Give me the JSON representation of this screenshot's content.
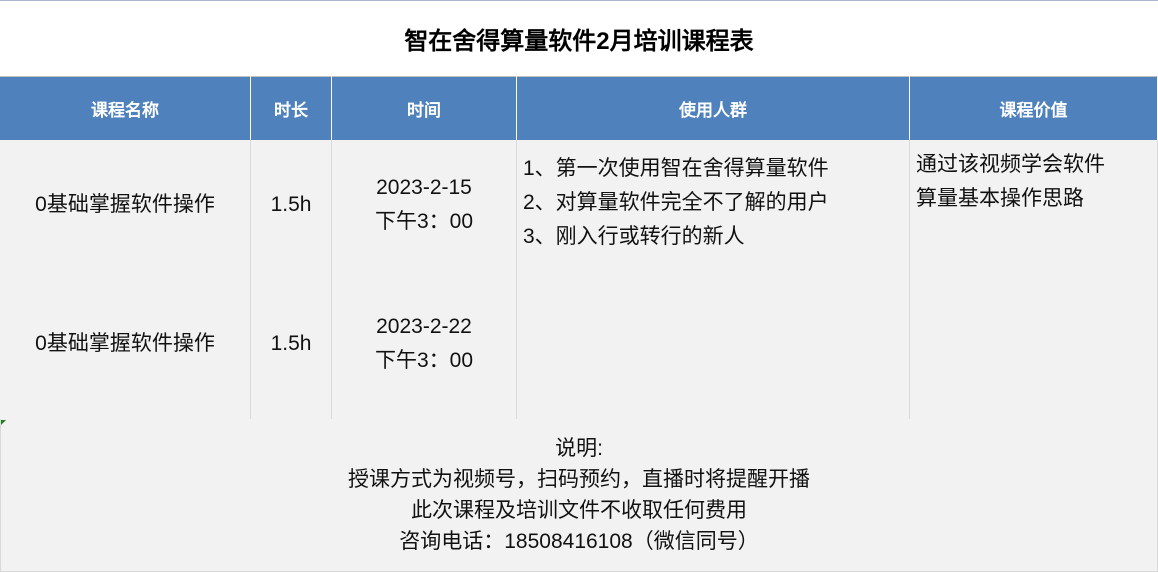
{
  "title": "智在舍得算量软件2月培训课程表",
  "headers": [
    "课程名称",
    "时长",
    "时间",
    "使用人群",
    "课程价值"
  ],
  "rows": [
    {
      "name": "0基础掌握软件操作",
      "duration": "1.5h",
      "date": "2023-2-15",
      "time": "下午3：00"
    },
    {
      "name": "0基础掌握软件操作",
      "duration": "1.5h",
      "date": "2023-2-22",
      "time": "下午3：00"
    }
  ],
  "audience": [
    "1、第一次使用智在舍得算量软件",
    "2、对算量软件完全不了解的用户",
    "3、刚入行或转行的新人"
  ],
  "value": [
    "通过该视频学会软件",
    "算量基本操作思路"
  ],
  "notes": [
    "说明:",
    "授课方式为视频号，扫码预约，直播时将提醒开播",
    "此次课程及培训文件不收取任何费用",
    "咨询电话：18508416108（微信同号）"
  ],
  "colors": {
    "header_bg": "#4f81bd",
    "cell_bg": "#f2f2f2"
  }
}
